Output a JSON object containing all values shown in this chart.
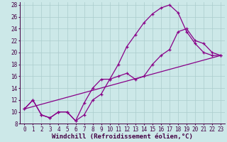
{
  "xlabel": "Windchill (Refroidissement éolien,°C)",
  "xlim": [
    -0.5,
    23.5
  ],
  "ylim": [
    8,
    28.5
  ],
  "xticks": [
    0,
    1,
    2,
    3,
    4,
    5,
    6,
    7,
    8,
    9,
    10,
    11,
    12,
    13,
    14,
    15,
    16,
    17,
    18,
    19,
    20,
    21,
    22,
    23
  ],
  "yticks": [
    8,
    10,
    12,
    14,
    16,
    18,
    20,
    22,
    24,
    26,
    28
  ],
  "bg_color": "#cce8e8",
  "line_color": "#880088",
  "grid_color": "#aacccc",
  "line1_x": [
    0,
    1,
    2,
    3,
    4,
    5,
    6,
    7,
    8,
    9,
    10,
    11,
    12,
    13,
    14,
    15,
    16,
    17,
    18,
    19,
    20,
    21,
    22,
    23
  ],
  "line1_y": [
    10.5,
    12.0,
    9.5,
    9.0,
    10.0,
    10.0,
    8.5,
    9.5,
    12.0,
    13.0,
    15.5,
    18.0,
    21.0,
    23.0,
    25.0,
    26.5,
    27.5,
    28.0,
    26.7,
    23.5,
    21.5,
    20.0,
    19.5,
    19.5
  ],
  "line2_x": [
    0,
    1,
    2,
    3,
    4,
    5,
    6,
    7,
    8,
    9,
    10,
    11,
    12,
    13,
    14,
    15,
    16,
    17,
    18,
    19,
    20,
    21,
    22,
    23
  ],
  "line2_y": [
    10.5,
    12.0,
    9.5,
    9.0,
    10.0,
    10.0,
    8.5,
    11.5,
    14.0,
    15.5,
    15.5,
    16.0,
    16.5,
    15.5,
    16.0,
    18.0,
    19.5,
    20.5,
    23.5,
    24.0,
    22.0,
    21.5,
    20.0,
    19.5
  ],
  "line3_x": [
    0,
    23
  ],
  "line3_y": [
    10.5,
    19.5
  ],
  "font_size_label": 6,
  "font_size_tick": 5.5,
  "xlabel_fontsize": 6.5
}
